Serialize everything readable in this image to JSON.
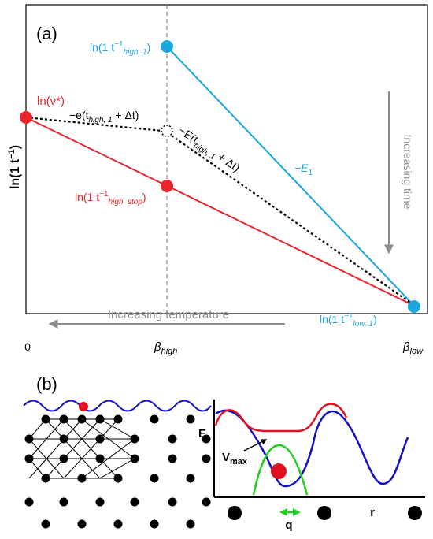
{
  "panel_a": {
    "label": "(a)",
    "y_axis_label_base": "ln(1 t",
    "y_axis_label_sup": "−1",
    "y_axis_label_close": ")",
    "x_ticks": {
      "zero": "0",
      "beta": "β",
      "high_sub": "high",
      "low_sub": "low"
    },
    "labels": {
      "nu_star": "ln(ν*)",
      "high1": {
        "base": "ln(1 t",
        "sup": "−1",
        "sub": "high, 1",
        "close": ")"
      },
      "highstop": {
        "base": "ln(1 t",
        "sup": "−1",
        "sub": "high, stop",
        "close": ")"
      },
      "low1": {
        "base": "ln(1 t",
        "sup": "−1",
        "sub": "low, 1",
        "close": ")"
      },
      "e_small": {
        "pre": "−e(t",
        "sub": "high, 1",
        "post": " + Δt)"
      },
      "E_big": {
        "pre": "−E(t",
        "sub": "high, 1",
        "post": " + Δt)"
      },
      "E1": {
        "pre": "−E",
        "sub": "1"
      }
    },
    "increasing_time": "Increasing time",
    "increasing_temperature": "Increasing  temperature",
    "colors": {
      "red": "#e8262c",
      "blue": "#1aa6e0",
      "gray": "#8c8c8c",
      "dotted": "#000000"
    }
  },
  "panel_b": {
    "label": "(b)",
    "E_label": "E",
    "vmax_base": "V",
    "vmax_sub": "max",
    "q_label": "q",
    "r_label": "r",
    "colors": {
      "blue": "#1010c8",
      "red": "#e01020",
      "green": "#22cc22",
      "dot": "#000000"
    }
  }
}
